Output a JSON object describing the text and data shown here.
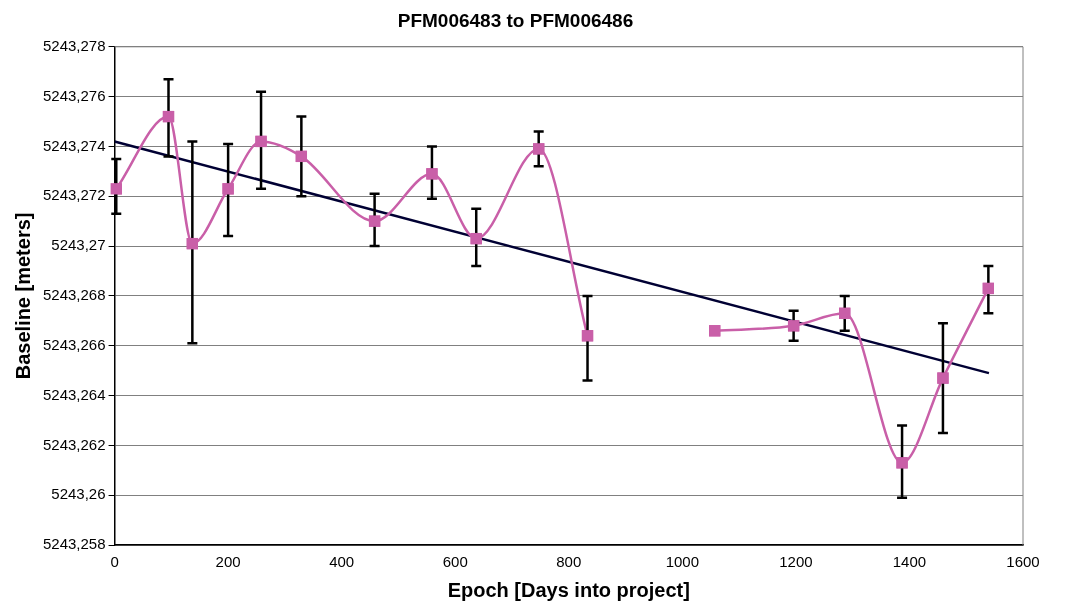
{
  "chart_data": {
    "type": "line",
    "title": "PFM006483 to PFM006486",
    "xlabel": "Epoch [Days into project]",
    "ylabel": "Baseline [meters]",
    "xlim": [
      0,
      1600
    ],
    "xticks": [
      0,
      200,
      400,
      600,
      800,
      1000,
      1200,
      1400,
      1600
    ],
    "ylim": [
      5243.258,
      5243.278
    ],
    "yticks": [
      {
        "value": 5243.258,
        "label": "5243,258"
      },
      {
        "value": 5243.26,
        "label": "5243,26"
      },
      {
        "value": 5243.262,
        "label": "5243,262"
      },
      {
        "value": 5243.264,
        "label": "5243,264"
      },
      {
        "value": 5243.266,
        "label": "5243,266"
      },
      {
        "value": 5243.268,
        "label": "5243,268"
      },
      {
        "value": 5243.27,
        "label": "5243,27"
      },
      {
        "value": 5243.272,
        "label": "5243,272"
      },
      {
        "value": 5243.274,
        "label": "5243,274"
      },
      {
        "value": 5243.276,
        "label": "5243,276"
      },
      {
        "value": 5243.278,
        "label": "5243,278"
      }
    ],
    "grid": "y",
    "legend": false,
    "marker": "square",
    "line_style": "solid",
    "series": [
      {
        "color": "#c95fa8",
        "x": [
          3,
          95,
          137,
          200,
          258,
          329,
          458,
          559,
          637,
          747,
          833
        ],
        "values": [
          5243.2723,
          5243.2752,
          5243.2701,
          5243.2723,
          5243.2742,
          5243.2736,
          5243.271,
          5243.2729,
          5243.2703,
          5243.2739,
          5243.2664
        ],
        "errors": [
          [
            5243.2713,
            5243.2735
          ],
          [
            5243.2736,
            5243.2767
          ],
          [
            5243.2661,
            5243.2742
          ],
          [
            5243.2704,
            5243.2741
          ],
          [
            5243.2723,
            5243.2762
          ],
          [
            5243.272,
            5243.2752
          ],
          [
            5243.27,
            5243.2721
          ],
          [
            5243.2719,
            5243.274
          ],
          [
            5243.2692,
            5243.2715
          ],
          [
            5243.2732,
            5243.2746
          ],
          [
            5243.2646,
            5243.268
          ]
        ]
      },
      {
        "color": "#c95fa8",
        "x": [
          1057,
          1196,
          1286,
          1387,
          1459,
          1539
        ],
        "values": [
          5243.2666,
          5243.2668,
          5243.2673,
          5243.2613,
          5243.2647,
          5243.2683
        ],
        "errors": [
          null,
          [
            5243.2662,
            5243.2674
          ],
          [
            5243.2666,
            5243.268
          ],
          [
            5243.2599,
            5243.2628
          ],
          [
            5243.2625,
            5243.2669
          ],
          [
            5243.2673,
            5243.2692
          ]
        ]
      },
      {
        "color": "#000033",
        "type": "line",
        "marker": "none",
        "x": [
          0,
          1540
        ],
        "values": [
          5243.2742,
          5243.2649
        ]
      }
    ]
  }
}
